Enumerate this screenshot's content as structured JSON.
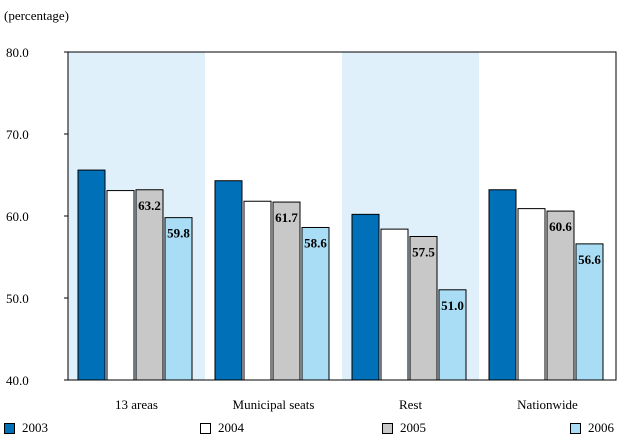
{
  "chart_data": {
    "type": "bar",
    "unit_label": "(percentage)",
    "categories": [
      "13 areas",
      "Municipal seats",
      "Rest",
      "Nationwide"
    ],
    "series": [
      {
        "name": "2003",
        "color": "#0070b8",
        "values": [
          65.6,
          64.3,
          60.2,
          63.2
        ]
      },
      {
        "name": "2004",
        "color": "#ffffff",
        "values": [
          63.1,
          61.8,
          58.4,
          60.9
        ]
      },
      {
        "name": "2005",
        "color": "#c8c8c8",
        "values": [
          63.2,
          61.7,
          57.5,
          60.6
        ]
      },
      {
        "name": "2006",
        "color": "#a9ddf5",
        "values": [
          59.8,
          58.6,
          51.0,
          56.6
        ]
      }
    ],
    "data_labels": {
      "2005": [
        "63.2",
        "61.7",
        "57.5",
        "60.6"
      ],
      "2006": [
        "59.8",
        "58.6",
        "51.0",
        "56.6"
      ]
    },
    "yticks": [
      "40.0",
      "50.0",
      "60.0",
      "70.0",
      "80.0"
    ],
    "ylim": [
      40,
      80
    ],
    "band_color": "#dff0fb",
    "shaded_categories": [
      "13 areas",
      "Rest"
    ],
    "legend_position": "bottom"
  }
}
